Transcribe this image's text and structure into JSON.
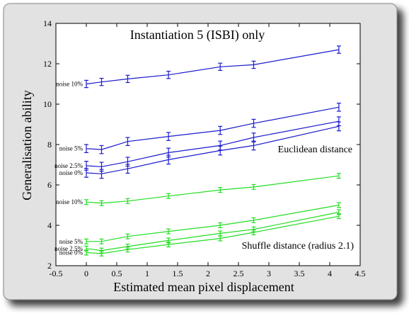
{
  "chart_data": {
    "type": "line",
    "title": "Instantiation 5 (ISBI) only",
    "xlabel": "Estimated mean pixel displacement",
    "ylabel": "Generalisation ability",
    "xlim": [
      -0.5,
      4.5
    ],
    "ylim": [
      2,
      14
    ],
    "x_ticks": [
      "-0.5",
      "0",
      "0.5",
      "1",
      "1.5",
      "2",
      "2.5",
      "3",
      "3.5",
      "4",
      "4.5"
    ],
    "y_ticks": [
      "2",
      "4",
      "6",
      "8",
      "10",
      "12",
      "14"
    ],
    "grid": false,
    "x": [
      0.0,
      0.25,
      0.68,
      1.35,
      2.2,
      2.75,
      4.15
    ],
    "annotations": {
      "euclidean": "Euclidean distance",
      "shuffle": "Shuffle distance (radius 2.1)"
    },
    "colors": {
      "euclidean": "#1a1acc",
      "shuffle": "#22dd22"
    },
    "series": [
      {
        "group": "euclidean",
        "label": "noise 10%",
        "values": [
          11.0,
          11.1,
          11.25,
          11.45,
          11.85,
          11.95,
          12.7
        ],
        "err": 0.18
      },
      {
        "group": "euclidean",
        "label": "noise 5%",
        "values": [
          7.8,
          7.75,
          8.15,
          8.4,
          8.7,
          9.05,
          9.85
        ],
        "err": 0.2
      },
      {
        "group": "euclidean",
        "label": "noise 2.5%",
        "values": [
          6.95,
          6.9,
          7.15,
          7.6,
          7.95,
          8.35,
          9.15
        ],
        "err": 0.22
      },
      {
        "group": "euclidean",
        "label": "noise 0%",
        "values": [
          6.6,
          6.55,
          6.8,
          7.25,
          7.7,
          7.95,
          8.9
        ],
        "err": 0.22
      },
      {
        "group": "shuffle",
        "label": "noise 10%",
        "values": [
          5.15,
          5.1,
          5.2,
          5.45,
          5.75,
          5.9,
          6.45
        ],
        "err": 0.12
      },
      {
        "group": "shuffle",
        "label": "noise 5%",
        "values": [
          3.2,
          3.2,
          3.45,
          3.7,
          4.0,
          4.25,
          5.0
        ],
        "err": 0.12
      },
      {
        "group": "shuffle",
        "label": "noise 2.5%",
        "values": [
          2.85,
          2.75,
          2.95,
          3.25,
          3.6,
          3.8,
          4.65
        ],
        "err": 0.12
      },
      {
        "group": "shuffle",
        "label": "noise 0%",
        "values": [
          2.65,
          2.6,
          2.8,
          3.05,
          3.35,
          3.65,
          4.45
        ],
        "err": 0.12
      }
    ]
  }
}
